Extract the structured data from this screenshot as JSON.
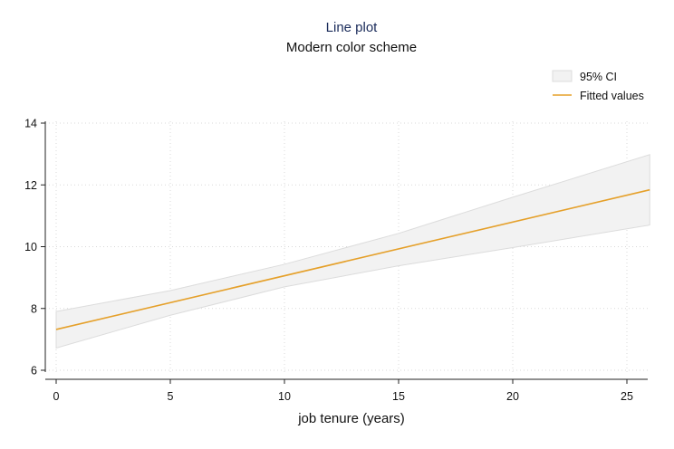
{
  "chart_data": {
    "type": "line",
    "title": "Line plot",
    "subtitle": "Modern color scheme",
    "xlabel": "job tenure (years)",
    "ylabel": "",
    "xlim": [
      0,
      26
    ],
    "ylim": [
      6,
      14
    ],
    "xticks": [
      0,
      5,
      10,
      15,
      20,
      25
    ],
    "yticks": [
      6,
      8,
      10,
      12,
      14
    ],
    "grid": true,
    "legend_position": "top-right",
    "series": [
      {
        "name": "95% CI",
        "kind": "band",
        "color": "#f2f2f2",
        "edge_color": "#dcdcdc",
        "x": [
          0,
          5,
          10,
          15,
          20,
          26
        ],
        "lower": [
          6.72,
          7.78,
          8.7,
          9.38,
          9.97,
          10.7
        ],
        "upper": [
          7.9,
          8.58,
          9.43,
          10.43,
          11.6,
          12.98
        ]
      },
      {
        "name": "Fitted values",
        "kind": "line",
        "color": "#e5a02a",
        "x": [
          0,
          26
        ],
        "y": [
          7.32,
          11.84
        ]
      }
    ]
  }
}
